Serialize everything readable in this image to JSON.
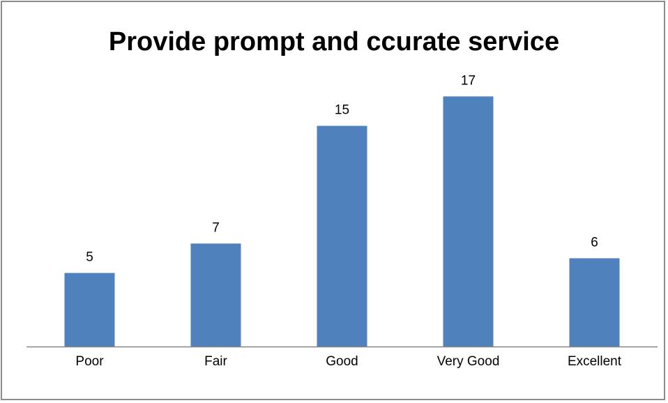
{
  "chart_data": {
    "type": "bar",
    "title": "Provide prompt and ccurate service",
    "categories": [
      "Poor",
      "Fair",
      "Good",
      "Very Good",
      "Excellent"
    ],
    "values": [
      5,
      7,
      15,
      17,
      6
    ],
    "data_labels": [
      "5",
      "7",
      "15",
      "17",
      "6"
    ],
    "xlabel": "",
    "ylabel": "",
    "ylim": [
      0,
      20
    ],
    "grid": false,
    "legend": "none",
    "bar_color": "#4f81bd",
    "axis_color": "#868686"
  }
}
